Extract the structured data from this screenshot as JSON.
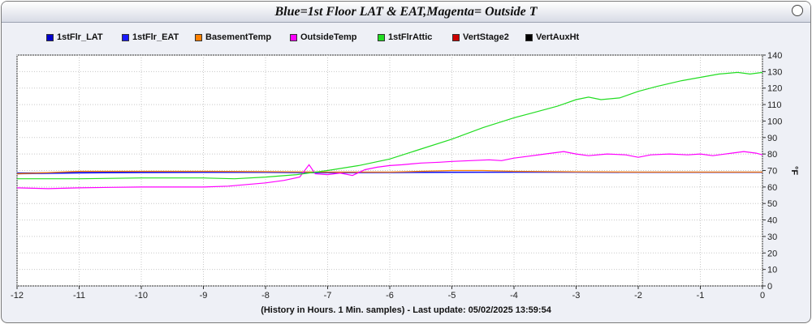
{
  "window": {
    "title": "Blue=1st Floor LAT & EAT,Magenta= Outside T"
  },
  "footer": "(History in Hours. 1 Min. samples) - Last update: 05/02/2025 13:59:54",
  "chart_data": {
    "type": "line",
    "ylabel": "°F",
    "xlim": [
      -12,
      0
    ],
    "ylim": [
      0,
      140
    ],
    "x_ticks": [
      -12,
      -11,
      -10,
      -9,
      -8,
      -7,
      -6,
      -5,
      -4,
      -3,
      -2,
      -1,
      0
    ],
    "y_ticks": [
      0,
      10,
      20,
      30,
      40,
      50,
      60,
      70,
      80,
      90,
      100,
      110,
      120,
      130,
      140
    ],
    "grid": true,
    "y_axis_side": "right",
    "legend_position": "top",
    "series": [
      {
        "name": "1stFlr_LAT",
        "color": "#0000cc",
        "points": [
          [
            -12,
            68.5
          ],
          [
            -11,
            68.8
          ],
          [
            -10,
            69.0
          ],
          [
            -9,
            69.0
          ],
          [
            -8,
            69.0
          ],
          [
            -7,
            69.0
          ],
          [
            -6,
            69.0
          ],
          [
            -5,
            69.0
          ],
          [
            -4,
            69.0
          ],
          [
            -3,
            69.0
          ],
          [
            -2,
            69.0
          ],
          [
            -1,
            69.0
          ],
          [
            0,
            69.0
          ]
        ]
      },
      {
        "name": "1stFlr_EAT",
        "color": "#1a1aff",
        "points": [
          [
            -12,
            68.0
          ],
          [
            -11,
            68.5
          ],
          [
            -10,
            68.7
          ],
          [
            -9,
            68.8
          ],
          [
            -8,
            68.8
          ],
          [
            -7,
            68.6
          ],
          [
            -6,
            68.7
          ],
          [
            -5,
            68.8
          ],
          [
            -4,
            68.9
          ],
          [
            -3,
            68.9
          ],
          [
            -2,
            68.8
          ],
          [
            -1,
            68.8
          ],
          [
            0,
            68.8
          ]
        ]
      },
      {
        "name": "BasementTemp",
        "color": "#ff8000",
        "points": [
          [
            -12,
            68.0
          ],
          [
            -11,
            69.5
          ],
          [
            -10,
            69.5
          ],
          [
            -9,
            69.5
          ],
          [
            -8,
            69.3
          ],
          [
            -7,
            69.0
          ],
          [
            -6,
            69.0
          ],
          [
            -5,
            70.0
          ],
          [
            -4.5,
            70.0
          ],
          [
            -4,
            69.5
          ],
          [
            -3,
            69.2
          ],
          [
            -2,
            69.0
          ],
          [
            -1,
            69.0
          ],
          [
            0,
            69.0
          ]
        ]
      },
      {
        "name": "OutsideTemp",
        "color": "#ff00ff",
        "points": [
          [
            -12,
            59.5
          ],
          [
            -11.5,
            59.0
          ],
          [
            -11,
            59.5
          ],
          [
            -10.5,
            59.8
          ],
          [
            -10,
            60.0
          ],
          [
            -9.5,
            60.0
          ],
          [
            -9,
            60.0
          ],
          [
            -8.6,
            60.5
          ],
          [
            -8.3,
            61.5
          ],
          [
            -8,
            62.5
          ],
          [
            -7.7,
            64.0
          ],
          [
            -7.45,
            66.0
          ],
          [
            -7.3,
            73.5
          ],
          [
            -7.2,
            68.0
          ],
          [
            -7.0,
            67.5
          ],
          [
            -6.8,
            68.5
          ],
          [
            -6.6,
            67.0
          ],
          [
            -6.4,
            70.5
          ],
          [
            -6.2,
            72.0
          ],
          [
            -6.0,
            73.0
          ],
          [
            -5.8,
            73.5
          ],
          [
            -5.5,
            74.5
          ],
          [
            -5.2,
            75.0
          ],
          [
            -5.0,
            75.5
          ],
          [
            -4.7,
            76.0
          ],
          [
            -4.4,
            76.5
          ],
          [
            -4.2,
            76.0
          ],
          [
            -4.0,
            77.5
          ],
          [
            -3.8,
            78.5
          ],
          [
            -3.5,
            80.0
          ],
          [
            -3.2,
            81.5
          ],
          [
            -3.0,
            80.0
          ],
          [
            -2.8,
            79.0
          ],
          [
            -2.5,
            80.0
          ],
          [
            -2.2,
            79.5
          ],
          [
            -2.0,
            78.0
          ],
          [
            -1.8,
            79.5
          ],
          [
            -1.5,
            80.0
          ],
          [
            -1.2,
            79.5
          ],
          [
            -1.0,
            80.0
          ],
          [
            -0.8,
            79.0
          ],
          [
            -0.5,
            80.5
          ],
          [
            -0.3,
            81.5
          ],
          [
            -0.1,
            80.5
          ],
          [
            0,
            79.5
          ]
        ]
      },
      {
        "name": "1stFlrAttic",
        "color": "#22dd22",
        "points": [
          [
            -12,
            65.0
          ],
          [
            -11,
            65.0
          ],
          [
            -10,
            65.5
          ],
          [
            -9,
            65.5
          ],
          [
            -8.5,
            65.0
          ],
          [
            -8,
            66.0
          ],
          [
            -7.5,
            67.5
          ],
          [
            -7,
            70.0
          ],
          [
            -6.5,
            73.0
          ],
          [
            -6,
            77.0
          ],
          [
            -5.5,
            83.0
          ],
          [
            -5,
            89.0
          ],
          [
            -4.5,
            96.0
          ],
          [
            -4,
            102.0
          ],
          [
            -3.7,
            105.0
          ],
          [
            -3.3,
            109.0
          ],
          [
            -3,
            113.0
          ],
          [
            -2.8,
            114.5
          ],
          [
            -2.6,
            113.0
          ],
          [
            -2.3,
            114.0
          ],
          [
            -2,
            118.0
          ],
          [
            -1.7,
            121.0
          ],
          [
            -1.3,
            124.5
          ],
          [
            -1,
            126.5
          ],
          [
            -0.7,
            128.5
          ],
          [
            -0.4,
            129.5
          ],
          [
            -0.2,
            128.5
          ],
          [
            0,
            129.5
          ]
        ]
      },
      {
        "name": "VertStage2",
        "color": "#cc0000",
        "points": []
      },
      {
        "name": "VertAuxHt",
        "color": "#000000",
        "points": []
      }
    ]
  }
}
